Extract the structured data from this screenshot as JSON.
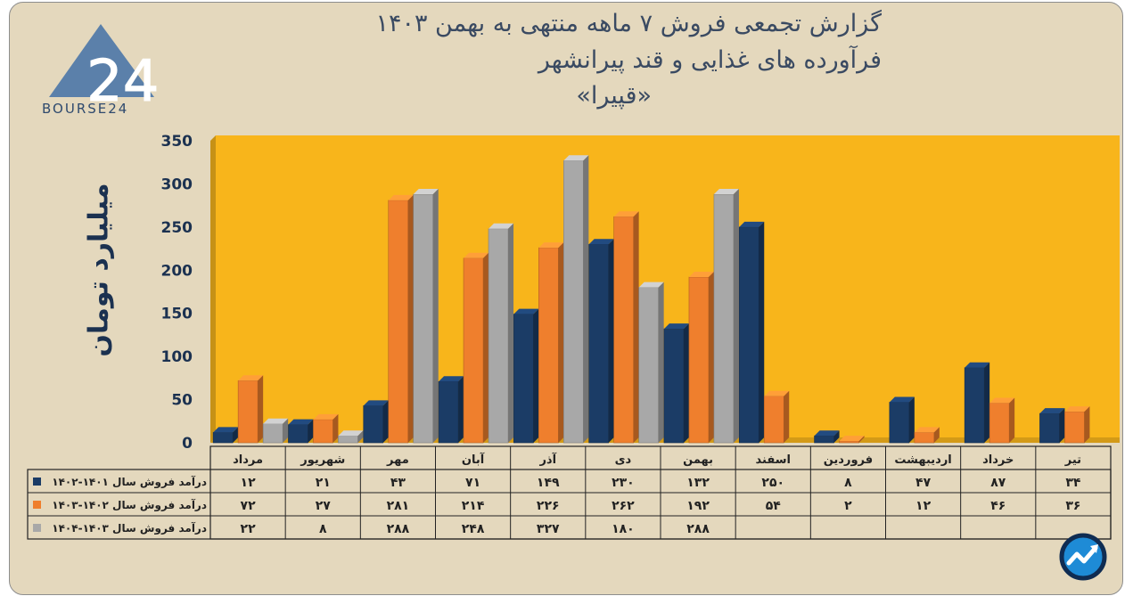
{
  "header": {
    "title_line1": "گزارش تجمعی فروش ۷ ماهه منتهی به بهمن ۱۴۰۳",
    "title_line2": "فرآورده های غذایی و قند پیرانشهر",
    "title_line3": "«قپیرا»"
  },
  "logo": {
    "mark": "24",
    "text": "BOURSE24"
  },
  "chart_data": {
    "type": "bar",
    "ylabel": "میلیارد تومان",
    "ylim": [
      0,
      350
    ],
    "yticks": [
      0,
      50,
      100,
      150,
      200,
      250,
      300,
      350
    ],
    "ytick_labels": [
      "0",
      "50",
      "100",
      "150",
      "200",
      "250",
      "300",
      "350"
    ],
    "grid": false,
    "legend": "table-below",
    "categories": [
      "مرداد",
      "شهریور",
      "مهر",
      "آبان",
      "آذر",
      "دی",
      "بهمن",
      "اسفند",
      "فروردین",
      "اردیبهشت",
      "خرداد",
      "تیر"
    ],
    "series": [
      {
        "name": "درآمد فروش سال ۱۴۰۱-۱۴۰۲",
        "color": "#1b3c66",
        "values": [
          12,
          21,
          43,
          71,
          149,
          230,
          132,
          250,
          8,
          47,
          87,
          34
        ],
        "labels": [
          "۱۲",
          "۲۱",
          "۴۳",
          "۷۱",
          "۱۴۹",
          "۲۳۰",
          "۱۳۲",
          "۲۵۰",
          "۸",
          "۴۷",
          "۸۷",
          "۳۴"
        ]
      },
      {
        "name": "درآمد فروش سال ۱۴۰۲-۱۴۰۳",
        "color": "#ef7f2d",
        "values": [
          72,
          27,
          281,
          214,
          226,
          262,
          192,
          54,
          2,
          12,
          46,
          36
        ],
        "labels": [
          "۷۲",
          "۲۷",
          "۲۸۱",
          "۲۱۴",
          "۲۲۶",
          "۲۶۲",
          "۱۹۲",
          "۵۴",
          "۲",
          "۱۲",
          "۴۶",
          "۳۶"
        ]
      },
      {
        "name": "درآمد فروش سال ۱۴۰۳-۱۴۰۴",
        "color": "#a8a8a8",
        "values": [
          22,
          8,
          288,
          248,
          327,
          180,
          288,
          null,
          null,
          null,
          null,
          null
        ],
        "labels": [
          "۲۲",
          "۸",
          "۲۸۸",
          "۲۴۸",
          "۳۲۷",
          "۱۸۰",
          "۲۸۸",
          "",
          "",
          "",
          "",
          ""
        ]
      }
    ]
  },
  "colors": {
    "plot_bg": "#f8b51b",
    "page_bg": "#e4d8bd",
    "title": "#3a4a62"
  },
  "icons": {
    "brand_mark": "trend-arrow-icon"
  }
}
